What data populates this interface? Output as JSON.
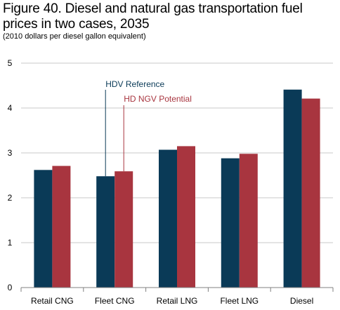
{
  "page": {
    "title": "Figure 40. Diesel and natural gas transportation fuel prices in two cases, 2035",
    "subtitle": "(2010 dollars per diesel gallon equivalent)"
  },
  "colors": {
    "series_1": "#0a3a57",
    "series_2": "#a8353f",
    "gridline": "#c8c8c8",
    "axis": "#808080"
  },
  "chart_data": {
    "type": "bar",
    "title": "Figure 40. Diesel and natural gas transportation fuel prices in two cases, 2035",
    "subtitle": "(2010 dollars per diesel gallon equivalent)",
    "xlabel": "",
    "ylabel": "",
    "categories": [
      "Retail CNG",
      "Fleet CNG",
      "Retail LNG",
      "Fleet LNG",
      "Diesel"
    ],
    "series": [
      {
        "name": "HDV Reference",
        "values": [
          2.62,
          2.48,
          3.07,
          2.88,
          4.41
        ]
      },
      {
        "name": "HD NGV Potential",
        "values": [
          2.71,
          2.59,
          3.15,
          2.98,
          4.21
        ]
      }
    ],
    "ylim": [
      0,
      5
    ],
    "yticks": [
      "0",
      "1",
      "2",
      "3",
      "4",
      "5"
    ],
    "grid": true,
    "legend": "annotation labels with leader lines above Fleet CNG bars"
  }
}
